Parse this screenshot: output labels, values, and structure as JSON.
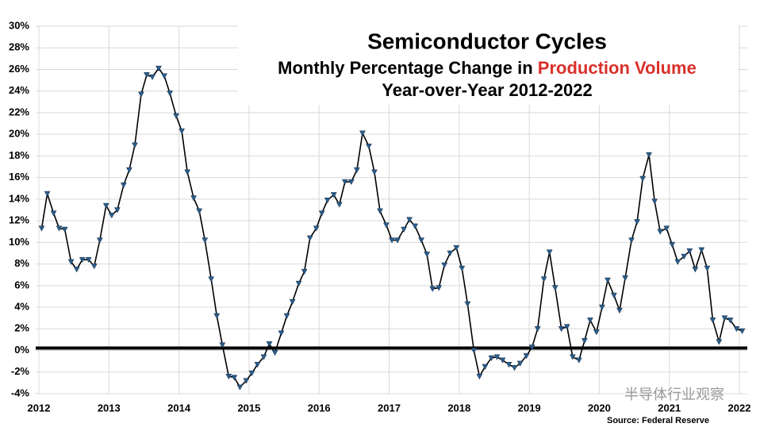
{
  "chart_data": {
    "type": "line",
    "title": "Semiconductor Cycles",
    "subtitle": [
      "Monthly Percentage Change in",
      "Production Volume"
    ],
    "subtitle_color": "#d9302a",
    "subtitle2": "Year-over-Year 2012-2022",
    "source": "Source: Federal Reserve",
    "watermark": "半导体行业观察",
    "x": [
      2012.04,
      2012.12,
      2012.21,
      2012.29,
      2012.37,
      2012.46,
      2012.54,
      2012.62,
      2012.71,
      2012.79,
      2012.87,
      2012.96,
      2013.04,
      2013.12,
      2013.21,
      2013.29,
      2013.37,
      2013.46,
      2013.54,
      2013.62,
      2013.71,
      2013.79,
      2013.87,
      2013.96,
      2014.04,
      2014.12,
      2014.21,
      2014.29,
      2014.37,
      2014.46,
      2014.54,
      2014.62,
      2014.71,
      2014.79,
      2014.87,
      2014.96,
      2015.04,
      2015.12,
      2015.21,
      2015.29,
      2015.37,
      2015.46,
      2015.54,
      2015.62,
      2015.71,
      2015.79,
      2015.87,
      2015.96,
      2016.04,
      2016.12,
      2016.21,
      2016.29,
      2016.37,
      2016.46,
      2016.54,
      2016.62,
      2016.71,
      2016.79,
      2016.87,
      2016.96,
      2017.04,
      2017.12,
      2017.21,
      2017.29,
      2017.37,
      2017.46,
      2017.54,
      2017.62,
      2017.71,
      2017.79,
      2017.87,
      2017.96,
      2018.04,
      2018.12,
      2018.21,
      2018.29,
      2018.37,
      2018.46,
      2018.54,
      2018.62,
      2018.71,
      2018.79,
      2018.87,
      2018.96,
      2019.04,
      2019.12,
      2019.21,
      2019.29,
      2019.37,
      2019.46,
      2019.54,
      2019.62,
      2019.71,
      2019.79,
      2019.87,
      2019.96,
      2020.04,
      2020.12,
      2020.21,
      2020.29,
      2020.37,
      2020.46,
      2020.54,
      2020.62,
      2020.71,
      2020.79,
      2020.87,
      2020.96,
      2021.04,
      2021.12,
      2021.21,
      2021.29,
      2021.37,
      2021.46,
      2021.54,
      2021.62,
      2021.71,
      2021.79,
      2021.87,
      2021.96,
      2022.04
    ],
    "series": [
      {
        "color": "#2b5c8a",
        "line_color": "#000000",
        "values": [
          11.3,
          14.5,
          12.7,
          11.3,
          11.2,
          8.2,
          7.5,
          8.4,
          8.4,
          7.8,
          10.2,
          13.4,
          12.5,
          13.0,
          15.3,
          16.7,
          19.0,
          23.7,
          25.5,
          25.3,
          26.1,
          25.4,
          23.8,
          21.7,
          20.3,
          16.5,
          14.1,
          12.9,
          10.2,
          6.6,
          3.2,
          0.5,
          -2.4,
          -2.5,
          -3.4,
          -2.8,
          -2.1,
          -1.3,
          -0.6,
          0.6,
          -0.2,
          1.6,
          3.2,
          4.5,
          6.2,
          7.3,
          10.4,
          11.3,
          12.7,
          13.9,
          14.4,
          13.5,
          15.6,
          15.6,
          16.7,
          20.1,
          18.9,
          16.5,
          12.9,
          11.6,
          10.2,
          10.2,
          11.2,
          12.1,
          11.5,
          10.2,
          8.9,
          5.7,
          5.8,
          7.9,
          9.0,
          9.5,
          7.6,
          4.3,
          0.0,
          -2.4,
          -1.5,
          -0.7,
          -0.6,
          -0.9,
          -1.3,
          -1.6,
          -1.2,
          -0.5,
          0.3,
          2.0,
          6.6,
          9.1,
          5.8,
          2.0,
          2.2,
          -0.6,
          -0.9,
          0.9,
          2.8,
          1.7,
          4.0,
          6.5,
          5.1,
          3.7,
          6.7,
          10.2,
          11.9,
          15.9,
          18.1,
          13.8,
          11.0,
          11.3,
          9.8,
          8.2,
          8.7,
          9.2,
          7.5,
          9.3,
          7.6,
          2.8,
          0.8,
          3.0,
          2.8,
          2.0,
          1.8
        ]
      }
    ],
    "xlim": [
      2012,
      2022
    ],
    "xticks": [
      2012,
      2013,
      2014,
      2015,
      2016,
      2017,
      2018,
      2019,
      2020,
      2021,
      2022
    ],
    "ylim": [
      -4,
      30
    ],
    "yticks": [
      {
        "value": -4,
        "label": "-4%"
      },
      {
        "value": -2,
        "label": "-2%"
      },
      {
        "value": 0,
        "label": "0%"
      },
      {
        "value": 2,
        "label": "2%"
      },
      {
        "value": 4,
        "label": "4%"
      },
      {
        "value": 6,
        "label": "6%"
      },
      {
        "value": 8,
        "label": "8%"
      },
      {
        "value": 10,
        "label": "10%"
      },
      {
        "value": 12,
        "label": "12%"
      },
      {
        "value": 14,
        "label": "14%"
      },
      {
        "value": 16,
        "label": "16%"
      },
      {
        "value": 18,
        "label": "18%"
      },
      {
        "value": 20,
        "label": "20%"
      },
      {
        "value": 22,
        "label": "22%"
      },
      {
        "value": 24,
        "label": "24%"
      },
      {
        "value": 26,
        "label": "26%"
      },
      {
        "value": 28,
        "label": "28%"
      },
      {
        "value": 30,
        "label": "30%"
      }
    ],
    "grid": true,
    "zero_line": true
  }
}
